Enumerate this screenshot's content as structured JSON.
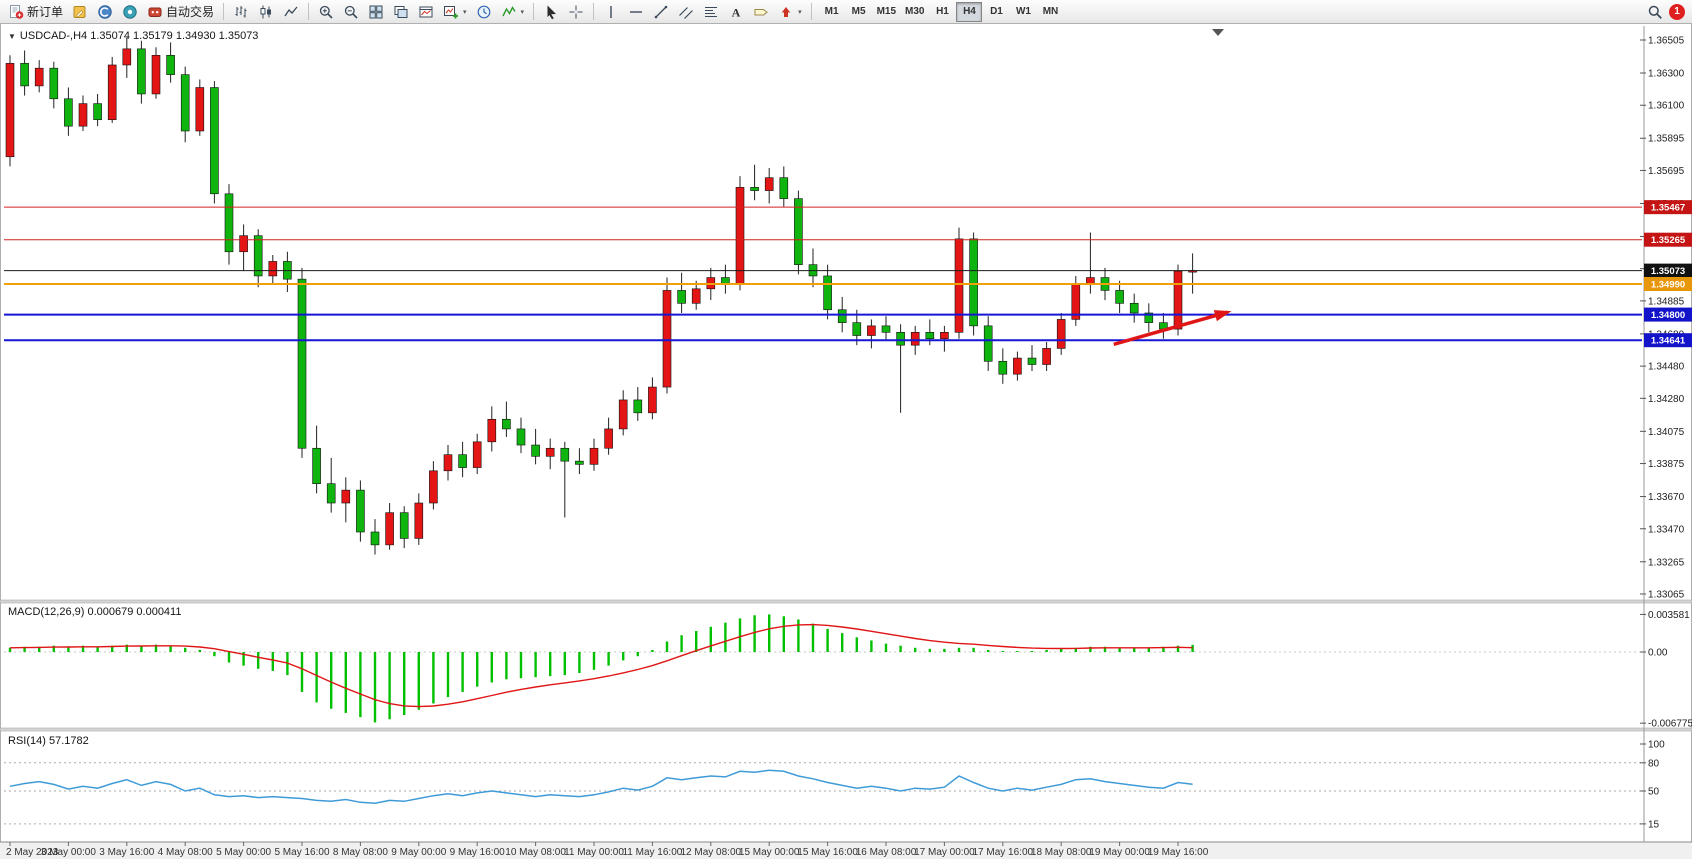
{
  "toolbar": {
    "new_order_label": "新订单",
    "autotrading_label": "自动交易",
    "timeframes": [
      "M1",
      "M5",
      "M15",
      "M30",
      "H1",
      "H4",
      "D1",
      "W1",
      "MN"
    ],
    "active_timeframe": "H4",
    "notification_count": "1",
    "icons": [
      "new-order",
      "metaeditor",
      "community",
      "market",
      "autotrading-robot",
      "bar-chart",
      "candlestick-chart",
      "line-chart",
      "zoom-in",
      "zoom-out",
      "tile-windows",
      "cascade-windows",
      "chart-window",
      "new-chart",
      "period-clock",
      "indicators",
      "cursor",
      "crosshair",
      "vertical-line",
      "horizontal-line",
      "trendline",
      "equidistant-channel",
      "fibonacci",
      "text",
      "text-label",
      "arrows",
      "search",
      "notification"
    ]
  },
  "chart": {
    "symbol_info": "USDCAD-,H4  1.35074 1.35179 1.34930 1.35073",
    "colors": {
      "bull": "#e41515",
      "bear": "#0fb40f",
      "wick": "#222222",
      "arrow": "#e01515"
    },
    "price_axis_max": 1.36505,
    "price_axis_min": 1.33065,
    "price_axis_labels": [
      "1.36505",
      "1.36300",
      "1.36100",
      "1.35895",
      "1.35695",
      "1.35490",
      "1.35285",
      "1.35085",
      "1.34885",
      "1.34680",
      "1.34480",
      "1.34280",
      "1.34075",
      "1.33875",
      "1.33670",
      "1.33470",
      "1.33265",
      "1.33065"
    ],
    "levels": [
      {
        "label": "1.35467",
        "price": 1.35467,
        "line": "#d62020",
        "tag": "#c41414",
        "width": 1,
        "kind": "resistance"
      },
      {
        "label": "1.35265",
        "price": 1.35265,
        "line": "#d62020",
        "tag": "#c41414",
        "width": 1,
        "kind": "resistance"
      },
      {
        "label": "1.35073",
        "price": 1.35073,
        "line": "#1a1a1a",
        "tag": "#111111",
        "width": 1,
        "kind": "bid"
      },
      {
        "label": "1.34990",
        "price": 1.3499,
        "line": "#efa00b",
        "tag": "#e8960a",
        "width": 2,
        "kind": "pivot"
      },
      {
        "label": "1.34800",
        "price": 1.348,
        "line": "#1616d6",
        "tag": "#1313c9",
        "width": 2,
        "kind": "support"
      },
      {
        "label": "1.34641",
        "price": 1.34641,
        "line": "#1616d6",
        "tag": "#1313c9",
        "width": 2,
        "kind": "support"
      }
    ],
    "time_labels": [
      {
        "i": 0,
        "t": "2 May 2023"
      },
      {
        "i": 4,
        "t": "3 May 00:00"
      },
      {
        "i": 8,
        "t": "3 May 16:00"
      },
      {
        "i": 12,
        "t": "4 May 08:00"
      },
      {
        "i": 16,
        "t": "5 May 00:00"
      },
      {
        "i": 20,
        "t": "5 May 16:00"
      },
      {
        "i": 24,
        "t": "8 May 08:00"
      },
      {
        "i": 28,
        "t": "9 May 00:00"
      },
      {
        "i": 32,
        "t": "9 May 16:00"
      },
      {
        "i": 36,
        "t": "10 May 08:00"
      },
      {
        "i": 40,
        "t": "11 May 00:00"
      },
      {
        "i": 44,
        "t": "11 May 16:00"
      },
      {
        "i": 48,
        "t": "12 May 08:00"
      },
      {
        "i": 52,
        "t": "15 May 00:00"
      },
      {
        "i": 56,
        "t": "15 May 16:00"
      },
      {
        "i": 60,
        "t": "16 May 08:00"
      },
      {
        "i": 64,
        "t": "17 May 00:00"
      },
      {
        "i": 68,
        "t": "17 May 16:00"
      },
      {
        "i": 72,
        "t": "18 May 08:00"
      },
      {
        "i": 76,
        "t": "19 May 00:00"
      },
      {
        "i": 80,
        "t": "19 May 16:00"
      }
    ],
    "candles": [
      [
        1.3578,
        1.3641,
        1.3572,
        1.3636
      ],
      [
        1.3636,
        1.3644,
        1.3616,
        1.3622
      ],
      [
        1.3622,
        1.3638,
        1.3618,
        1.3633
      ],
      [
        1.3633,
        1.3637,
        1.3608,
        1.3614
      ],
      [
        1.3614,
        1.3621,
        1.3591,
        1.3597
      ],
      [
        1.3597,
        1.3616,
        1.3594,
        1.3611
      ],
      [
        1.3611,
        1.3617,
        1.3597,
        1.3601
      ],
      [
        1.3601,
        1.364,
        1.3599,
        1.3635
      ],
      [
        1.3635,
        1.3652,
        1.3627,
        1.3645
      ],
      [
        1.3645,
        1.365,
        1.3611,
        1.3617
      ],
      [
        1.3617,
        1.3646,
        1.3614,
        1.3641
      ],
      [
        1.3641,
        1.3649,
        1.3624,
        1.3629
      ],
      [
        1.3629,
        1.3634,
        1.3587,
        1.3594
      ],
      [
        1.3594,
        1.3626,
        1.3591,
        1.3621
      ],
      [
        1.3621,
        1.3625,
        1.3549,
        1.3555
      ],
      [
        1.3555,
        1.3561,
        1.3511,
        1.3519
      ],
      [
        1.3519,
        1.3536,
        1.3507,
        1.3529
      ],
      [
        1.3529,
        1.3533,
        1.3497,
        1.3504
      ],
      [
        1.3504,
        1.3517,
        1.3499,
        1.3513
      ],
      [
        1.3513,
        1.3519,
        1.3494,
        1.3502
      ],
      [
        1.3502,
        1.3509,
        1.3391,
        1.3397
      ],
      [
        1.3397,
        1.3411,
        1.3369,
        1.3375
      ],
      [
        1.3375,
        1.3391,
        1.3357,
        1.3363
      ],
      [
        1.3363,
        1.3379,
        1.3351,
        1.3371
      ],
      [
        1.3371,
        1.3377,
        1.3339,
        1.3345
      ],
      [
        1.3345,
        1.3353,
        1.3331,
        1.3337
      ],
      [
        1.3337,
        1.3363,
        1.3334,
        1.3357
      ],
      [
        1.3357,
        1.3361,
        1.3335,
        1.3341
      ],
      [
        1.3341,
        1.3369,
        1.3337,
        1.3363
      ],
      [
        1.3363,
        1.3389,
        1.3359,
        1.3383
      ],
      [
        1.3383,
        1.3399,
        1.3377,
        1.3393
      ],
      [
        1.3393,
        1.3401,
        1.3379,
        1.3385
      ],
      [
        1.3385,
        1.3406,
        1.3381,
        1.3401
      ],
      [
        1.3401,
        1.3423,
        1.3395,
        1.3415
      ],
      [
        1.3415,
        1.3426,
        1.3404,
        1.3409
      ],
      [
        1.3409,
        1.3416,
        1.3394,
        1.3399
      ],
      [
        1.3399,
        1.3409,
        1.3387,
        1.3392
      ],
      [
        1.3392,
        1.3403,
        1.3384,
        1.3397
      ],
      [
        1.3397,
        1.3401,
        1.3354,
        1.3389
      ],
      [
        1.3389,
        1.3397,
        1.3381,
        1.3387
      ],
      [
        1.3387,
        1.3403,
        1.3383,
        1.3397
      ],
      [
        1.3397,
        1.3416,
        1.3393,
        1.3409
      ],
      [
        1.3409,
        1.3433,
        1.3405,
        1.3427
      ],
      [
        1.3427,
        1.3435,
        1.3414,
        1.3419
      ],
      [
        1.3419,
        1.3441,
        1.3415,
        1.3435
      ],
      [
        1.3435,
        1.3503,
        1.3431,
        1.3495
      ],
      [
        1.3495,
        1.3506,
        1.3481,
        1.3487
      ],
      [
        1.3487,
        1.3501,
        1.3483,
        1.3496
      ],
      [
        1.3496,
        1.3509,
        1.3489,
        1.3503
      ],
      [
        1.3503,
        1.3511,
        1.3493,
        1.3499
      ],
      [
        1.3499,
        1.3566,
        1.3495,
        1.3559
      ],
      [
        1.3559,
        1.3573,
        1.3551,
        1.3557
      ],
      [
        1.3557,
        1.3571,
        1.3549,
        1.3565
      ],
      [
        1.3565,
        1.3572,
        1.3547,
        1.3552
      ],
      [
        1.3552,
        1.3557,
        1.3505,
        1.3511
      ],
      [
        1.3511,
        1.3521,
        1.3497,
        1.3504
      ],
      [
        1.3504,
        1.3511,
        1.3477,
        1.3483
      ],
      [
        1.3483,
        1.3491,
        1.3469,
        1.3475
      ],
      [
        1.3475,
        1.3483,
        1.3461,
        1.3467
      ],
      [
        1.3467,
        1.3477,
        1.3459,
        1.3473
      ],
      [
        1.3473,
        1.3479,
        1.3464,
        1.3469
      ],
      [
        1.3469,
        1.3474,
        1.3419,
        1.3461
      ],
      [
        1.3461,
        1.3473,
        1.3455,
        1.3469
      ],
      [
        1.3469,
        1.3477,
        1.3461,
        1.3465
      ],
      [
        1.3465,
        1.3473,
        1.3457,
        1.3469
      ],
      [
        1.3469,
        1.3534,
        1.3465,
        1.3527
      ],
      [
        1.3527,
        1.3531,
        1.3467,
        1.3473
      ],
      [
        1.3473,
        1.3479,
        1.3445,
        1.3451
      ],
      [
        1.3451,
        1.3459,
        1.3437,
        1.3443
      ],
      [
        1.3443,
        1.3457,
        1.3439,
        1.3453
      ],
      [
        1.3453,
        1.3461,
        1.3445,
        1.3449
      ],
      [
        1.3449,
        1.3463,
        1.3445,
        1.3459
      ],
      [
        1.3459,
        1.3481,
        1.3455,
        1.3477
      ],
      [
        1.3477,
        1.3504,
        1.3473,
        1.3499
      ],
      [
        1.3499,
        1.3531,
        1.3493,
        1.3503
      ],
      [
        1.3503,
        1.3509,
        1.3489,
        1.3495
      ],
      [
        1.3495,
        1.3501,
        1.3481,
        1.3487
      ],
      [
        1.3487,
        1.3493,
        1.3475,
        1.3481
      ],
      [
        1.3481,
        1.3487,
        1.3469,
        1.3475
      ],
      [
        1.3475,
        1.3481,
        1.3465,
        1.3471
      ],
      [
        1.3471,
        1.3511,
        1.3467,
        1.3507
      ],
      [
        1.3507,
        1.3518,
        1.3493,
        1.35073
      ]
    ],
    "annotations": {
      "arrow": {
        "from_t": 75.6,
        "from_p": 1.34615,
        "to_t": 83.4,
        "to_p": 1.34815
      }
    }
  },
  "macd": {
    "label": "MACD(12,26,9) 0.000679 0.000411",
    "colors": {
      "histogram": "#00c000",
      "signal": "#e01515"
    },
    "axis_labels": [
      {
        "text": "0.003581",
        "value": 0.003581
      },
      {
        "text": "0.00",
        "value": 0
      },
      {
        "text": "-0.006775",
        "value": -0.006775
      }
    ],
    "histogram": [
      0.0004,
      0.0005,
      0.0005,
      0.0006,
      0.0005,
      0.0006,
      0.0005,
      0.0006,
      0.0007,
      0.0006,
      0.0007,
      0.0006,
      0.0004,
      0.0002,
      -0.0004,
      -0.001,
      -0.0013,
      -0.0016,
      -0.0018,
      -0.0022,
      -0.0038,
      -0.0048,
      -0.0054,
      -0.0058,
      -0.0062,
      -0.0067,
      -0.0064,
      -0.006,
      -0.0055,
      -0.0049,
      -0.0043,
      -0.0038,
      -0.0033,
      -0.0029,
      -0.0026,
      -0.0025,
      -0.0024,
      -0.0023,
      -0.0022,
      -0.002,
      -0.0017,
      -0.0013,
      -0.0008,
      -0.0004,
      0.0002,
      0.001,
      0.0016,
      0.002,
      0.0024,
      0.0028,
      0.0032,
      0.0035,
      0.00358,
      0.0034,
      0.0031,
      0.0027,
      0.0022,
      0.0018,
      0.0014,
      0.0011,
      0.0008,
      0.0006,
      0.0004,
      0.0003,
      0.0003,
      0.0004,
      0.0004,
      0.0002,
      0.0001,
      0.0001,
      0.0001,
      0.0002,
      0.0003,
      0.0004,
      0.0005,
      0.0005,
      0.0004,
      0.0004,
      0.0004,
      0.0005,
      0.0006,
      0.000679
    ],
    "signal": [
      0.0004,
      0.00042,
      0.00044,
      0.00047,
      0.00048,
      0.0005,
      0.0005,
      0.00052,
      0.00056,
      0.00057,
      0.00059,
      0.00059,
      0.00056,
      0.00048,
      0.00031,
      5e-05,
      -0.00022,
      -0.0005,
      -0.00076,
      -0.00105,
      -0.0016,
      -0.00224,
      -0.00287,
      -0.00346,
      -0.004,
      -0.00454,
      -0.00491,
      -0.00513,
      -0.0052,
      -0.00514,
      -0.00497,
      -0.00474,
      -0.00445,
      -0.00414,
      -0.00383,
      -0.00356,
      -0.00333,
      -0.00312,
      -0.00294,
      -0.00275,
      -0.00254,
      -0.00229,
      -0.00199,
      -0.00167,
      -0.0013,
      -0.00084,
      -0.00035,
      0.00012,
      0.00058,
      0.00102,
      0.00146,
      0.00187,
      0.00221,
      0.00245,
      0.00258,
      0.00261,
      0.00253,
      0.00238,
      0.00219,
      0.00197,
      0.00174,
      0.00151,
      0.00129,
      0.00109,
      0.00093,
      0.00082,
      0.00074,
      0.00063,
      0.00052,
      0.00044,
      0.00037,
      0.00034,
      0.00033,
      0.00034,
      0.00038,
      0.0004,
      0.0004,
      0.0004,
      0.0004,
      0.00042,
      0.00045,
      0.000411
    ]
  },
  "rsi": {
    "label": "RSI(14) 57.1782",
    "color": "#3f9bd8",
    "level_lines": [
      80,
      50,
      15
    ],
    "axis_labels": [
      {
        "text": "100",
        "value": 100
      },
      {
        "text": "80",
        "value": 80
      },
      {
        "text": "50",
        "value": 50
      },
      {
        "text": "15",
        "value": 15
      }
    ],
    "values": [
      55,
      58,
      60,
      57,
      52,
      55,
      53,
      58,
      62,
      56,
      60,
      57,
      50,
      53,
      46,
      44,
      45,
      43,
      44,
      43,
      42,
      40,
      39,
      41,
      38,
      37,
      40,
      39,
      42,
      45,
      47,
      45,
      48,
      50,
      48,
      46,
      44,
      46,
      45,
      44,
      46,
      49,
      53,
      51,
      55,
      64,
      62,
      64,
      66,
      65,
      71,
      70,
      72,
      71,
      66,
      63,
      59,
      56,
      53,
      55,
      53,
      50,
      53,
      52,
      54,
      66,
      59,
      53,
      50,
      53,
      51,
      54,
      57,
      62,
      63,
      60,
      58,
      56,
      54,
      53,
      59,
      57.18
    ]
  }
}
